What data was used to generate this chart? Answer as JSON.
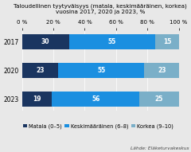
{
  "title_line1": "Taloudellinen tyytyväisyys (matala, keskimääräinen, korkea)",
  "title_line2": "vuosina 2017, 2020 ja 2023, %",
  "years": [
    "2017",
    "2020",
    "2023"
  ],
  "matala": [
    30,
    23,
    19
  ],
  "keski": [
    55,
    55,
    56
  ],
  "korkea": [
    15,
    23,
    25
  ],
  "color_matala": "#1a3560",
  "color_keski": "#1b8fe0",
  "color_korkea": "#7aafc8",
  "bg_color": "#e8e8e8",
  "legend_labels": [
    "Matala (0–5)",
    "Keskimääräinen (6–8)",
    "Korkea (9–10)"
  ],
  "source": "Lähde: Eläketurvakeskus",
  "xlim": [
    0,
    100
  ],
  "xticks": [
    0,
    20,
    40,
    60,
    80,
    100
  ],
  "xtick_labels": [
    "0 %",
    "20 %",
    "40 %",
    "60 %",
    "80 %",
    "100 %"
  ],
  "title_fontsize": 5.2,
  "label_fontsize": 5.5,
  "tick_fontsize": 5.0,
  "legend_fontsize": 4.8,
  "source_fontsize": 4.2,
  "bar_height": 0.52,
  "value_fontsize": 5.5
}
